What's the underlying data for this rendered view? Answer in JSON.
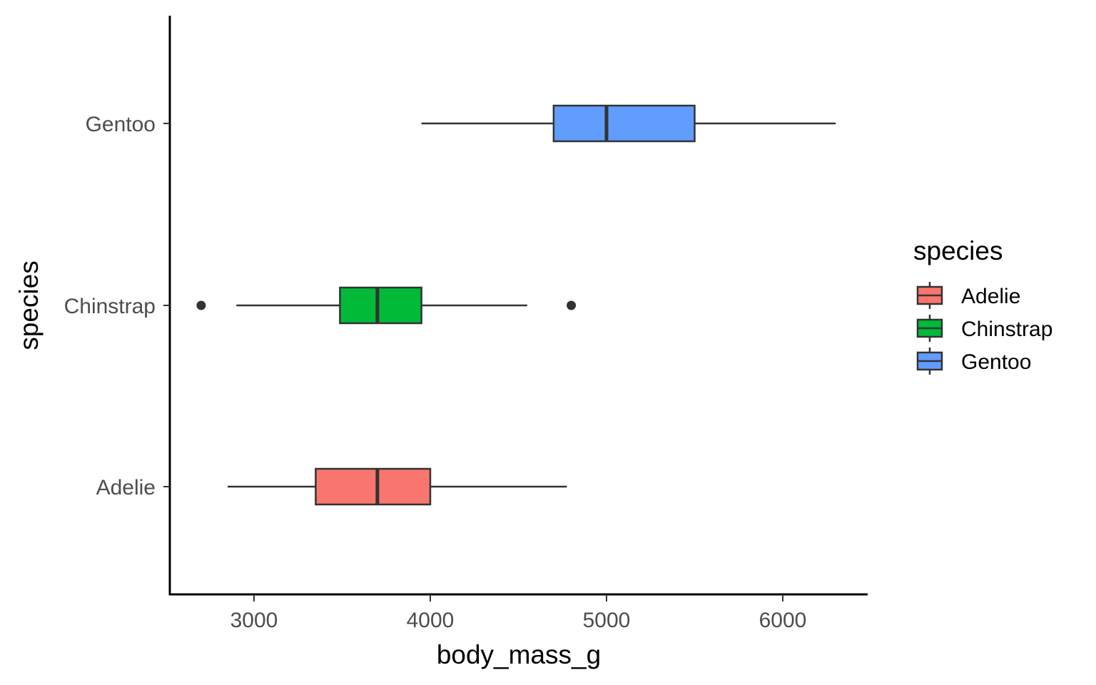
{
  "chart_data": {
    "type": "boxplot",
    "orientation": "horizontal",
    "xlabel": "body_mass_g",
    "ylabel": "species",
    "xlim": [
      2500,
      6500
    ],
    "xticks": [
      3000,
      4000,
      5000,
      6000
    ],
    "grid": false,
    "legend_position": "right",
    "legend_title": "species",
    "categories": [
      "Adelie",
      "Chinstrap",
      "Gentoo"
    ],
    "series": [
      {
        "name": "Adelie",
        "color": "#F8766D",
        "whisker_low": 2850,
        "q1": 3350,
        "median": 3700,
        "q3": 4000,
        "whisker_high": 4775,
        "outliers": []
      },
      {
        "name": "Chinstrap",
        "color": "#00BA38",
        "whisker_low": 2900,
        "q1": 3487.5,
        "median": 3700,
        "q3": 3950,
        "whisker_high": 4550,
        "outliers": [
          2700,
          4800
        ]
      },
      {
        "name": "Gentoo",
        "color": "#619CFF",
        "whisker_low": 3950,
        "q1": 4700,
        "median": 5000,
        "q3": 5500,
        "whisker_high": 6300,
        "outliers": []
      }
    ]
  }
}
